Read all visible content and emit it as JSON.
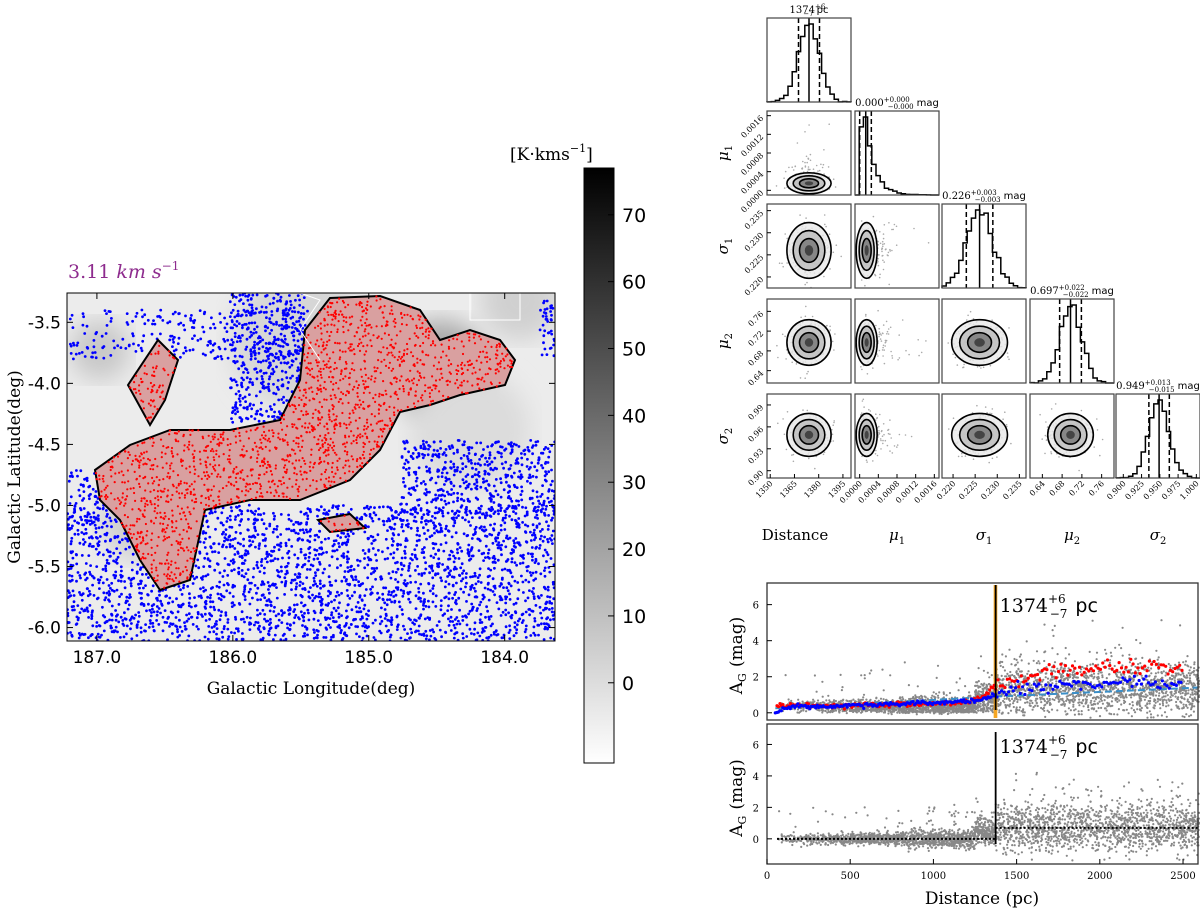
{
  "colors": {
    "red_stars": "#ff0000",
    "blue_stars": "#0000ff",
    "foreground": "#888888",
    "band": "#f5a623",
    "model_line": "#3a8fc8",
    "title_color": "#8e2c8e"
  },
  "chart_data": [
    {
      "type": "heatmap",
      "title": {
        "value": "3.11",
        "unit": "km s",
        "exp": "−1"
      },
      "xlabel": "Galactic Longitude(deg)",
      "ylabel": "Galactic Latitude(deg)",
      "xlim": [
        187.22,
        183.63
      ],
      "ylim": [
        -6.11,
        -3.26
      ],
      "xticks": [
        "187.0",
        "186.0",
        "185.0",
        "184.0"
      ],
      "xtick_values": [
        187.0,
        186.0,
        185.0,
        184.0
      ],
      "yticks": [
        "-3.5",
        "-4.0",
        "-4.5",
        "-5.0",
        "-5.5",
        "-6.0"
      ],
      "ytick_values": [
        -3.5,
        -4.0,
        -4.5,
        -5.0,
        -5.5,
        -6.0
      ],
      "colorbar": {
        "label": "[K·kms",
        "label_exp": "−1",
        "label_end": "]",
        "range": [
          -12,
          77
        ],
        "ticks": [
          "0",
          "10",
          "20",
          "30",
          "40",
          "50",
          "60",
          "70"
        ],
        "tick_values": [
          0,
          10,
          20,
          30,
          40,
          50,
          60,
          70
        ],
        "cmap": "gray_r"
      },
      "series": [
        {
          "kind": "on-cloud stars",
          "color": "red"
        },
        {
          "kind": "off-cloud stars",
          "color": "blue"
        }
      ]
    },
    {
      "type": "corner",
      "params": [
        {
          "sym": "Distance",
          "sub": "",
          "median": 1374,
          "spread": 6.5,
          "range": [
            1348,
            1400
          ],
          "ticks": [
            "1350",
            "1365",
            "1380",
            "1395"
          ],
          "tick_values": [
            1350,
            1365,
            1380,
            1395
          ],
          "title": {
            "value": "1374",
            "plus": "+6",
            "minus": "−7",
            "unit": "pc"
          }
        },
        {
          "sym": "μ",
          "sub": "1",
          "median": 5e-05,
          "spread": 0.0002,
          "range": [
            -0.0001,
            0.0017
          ],
          "ticks": [
            "0.0000",
            "0.0004",
            "0.0008",
            "0.0012",
            "0.0016"
          ],
          "tick_values": [
            0,
            0.0004,
            0.0008,
            0.0012,
            0.0016
          ],
          "title": {
            "value": "0.000",
            "plus": "+0.000",
            "minus": "−0.000",
            "unit": "mag"
          }
        },
        {
          "sym": "σ",
          "sub": "1",
          "median": 0.226,
          "spread": 0.003,
          "range": [
            0.2175,
            0.2365
          ],
          "ticks": [
            "0.220",
            "0.225",
            "0.230",
            "0.235"
          ],
          "tick_values": [
            0.22,
            0.225,
            0.23,
            0.235
          ],
          "title": {
            "value": "0.226",
            "plus": "+0.003",
            "minus": "−0.003",
            "unit": "mag"
          }
        },
        {
          "sym": "μ",
          "sub": "2",
          "median": 0.697,
          "spread": 0.022,
          "range": [
            0.615,
            0.785
          ],
          "ticks": [
            "0.64",
            "0.68",
            "0.72",
            "0.76"
          ],
          "tick_values": [
            0.64,
            0.68,
            0.72,
            0.76
          ],
          "title": {
            "value": "0.697",
            "plus": "+0.022",
            "minus": "−0.022",
            "unit": "mag"
          }
        },
        {
          "sym": "σ",
          "sub": "2",
          "median": 0.949,
          "spread": 0.014,
          "range": [
            0.89,
            1.005
          ],
          "ticks": [
            "0.900",
            "0.925",
            "0.950",
            "0.975",
            "1.000"
          ],
          "tick_values": [
            0.9,
            0.925,
            0.95,
            0.975,
            1.0
          ],
          "yticks": [
            "0.90",
            "0.93",
            "0.96",
            "0.99"
          ],
          "ytick_values": [
            0.9,
            0.93,
            0.96,
            0.99
          ],
          "title": {
            "value": "0.949",
            "plus": "+0.013",
            "minus": "−0.015",
            "unit": "mag"
          }
        }
      ]
    },
    {
      "type": "scatter",
      "xlabel": "",
      "ylabel": {
        "sym": "A",
        "sub": "G",
        "unit": "(mag)"
      },
      "xlim": [
        0,
        2590
      ],
      "ylim": [
        -0.4,
        7.2
      ],
      "yticks": [
        "0",
        "2",
        "4",
        "6"
      ],
      "ytick_values": [
        0,
        2,
        4,
        6
      ],
      "annotation": {
        "value": "1374",
        "plus": "+6",
        "minus": "−7",
        "unit": "pc"
      },
      "distance": 1374,
      "band": [
        1362,
        1384
      ],
      "blue_binned": [
        [
          50,
          0.05
        ],
        [
          100,
          0.25
        ],
        [
          200,
          0.4
        ],
        [
          300,
          0.35
        ],
        [
          400,
          0.38
        ],
        [
          500,
          0.42
        ],
        [
          600,
          0.45
        ],
        [
          700,
          0.48
        ],
        [
          800,
          0.5
        ],
        [
          900,
          0.55
        ],
        [
          1000,
          0.55
        ],
        [
          1100,
          0.6
        ],
        [
          1200,
          0.65
        ],
        [
          1300,
          0.75
        ],
        [
          1374,
          1.0
        ],
        [
          1450,
          1.2
        ],
        [
          1500,
          1.3
        ],
        [
          1600,
          1.4
        ],
        [
          1700,
          1.5
        ],
        [
          1800,
          1.6
        ],
        [
          1900,
          1.6
        ],
        [
          2000,
          1.5
        ],
        [
          2100,
          1.65
        ],
        [
          2200,
          1.7
        ],
        [
          2300,
          1.6
        ],
        [
          2400,
          1.55
        ],
        [
          2500,
          1.5
        ]
      ],
      "red_binned": [
        [
          60,
          0.4
        ],
        [
          200,
          0.4
        ],
        [
          400,
          0.38
        ],
        [
          600,
          0.45
        ],
        [
          800,
          0.5
        ],
        [
          1000,
          0.5
        ],
        [
          1200,
          0.6
        ],
        [
          1300,
          0.9
        ],
        [
          1374,
          1.6
        ],
        [
          1450,
          1.7
        ],
        [
          1500,
          1.8
        ],
        [
          1600,
          2.0
        ],
        [
          1700,
          2.3
        ],
        [
          1800,
          2.5
        ],
        [
          1900,
          2.3
        ],
        [
          2000,
          2.4
        ],
        [
          2100,
          2.6
        ],
        [
          2200,
          2.4
        ],
        [
          2300,
          2.7
        ],
        [
          2400,
          2.5
        ],
        [
          2500,
          2.6
        ]
      ],
      "model": [
        [
          50,
          0.25
        ],
        [
          1374,
          0.9
        ],
        [
          2590,
          1.4
        ]
      ]
    },
    {
      "type": "scatter",
      "xlabel": "Distance (pc)",
      "ylabel": {
        "sym": "A",
        "sub": "G",
        "unit": "(mag)"
      },
      "xlim": [
        0,
        2590
      ],
      "ylim": [
        -1.6,
        7.3
      ],
      "xticks": [
        "0",
        "500",
        "1000",
        "1500",
        "2000",
        "2500"
      ],
      "xtick_values": [
        0,
        500,
        1000,
        1500,
        2000,
        2500
      ],
      "yticks": [
        "0",
        "2",
        "4",
        "6"
      ],
      "ytick_values": [
        0,
        2,
        4,
        6
      ],
      "annotation": {
        "value": "1374",
        "plus": "+6",
        "minus": "−7",
        "unit": "pc"
      },
      "distance": 1374,
      "model": {
        "foreground": 0.0,
        "background": 0.7
      }
    }
  ]
}
